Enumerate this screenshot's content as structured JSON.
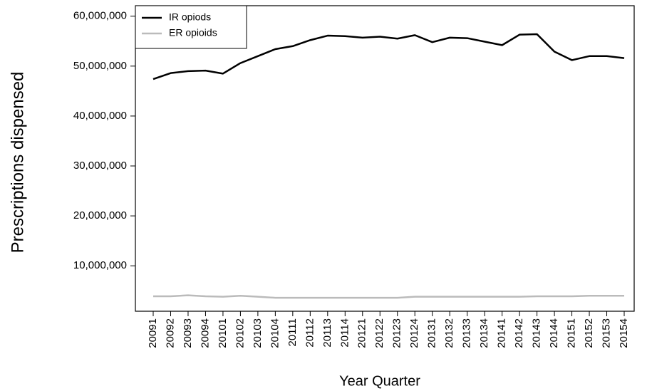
{
  "chart_data": {
    "type": "line",
    "x_label": "Year Quarter",
    "y_label": "Prescriptions dispensed",
    "categories": [
      "20091",
      "20092",
      "20093",
      "20094",
      "20101",
      "20102",
      "20103",
      "20104",
      "20111",
      "20112",
      "20113",
      "20114",
      "20121",
      "20122",
      "20123",
      "20124",
      "20131",
      "20132",
      "20133",
      "20134",
      "20141",
      "20142",
      "20143",
      "20144",
      "20151",
      "20152",
      "20153",
      "20154"
    ],
    "series": [
      {
        "name": "IR opiods",
        "color": "#000000",
        "values": [
          47400000,
          48600000,
          49000000,
          49100000,
          48500000,
          50600000,
          52000000,
          53400000,
          54000000,
          55200000,
          56100000,
          56000000,
          55700000,
          55900000,
          55500000,
          56200000,
          54800000,
          55700000,
          55600000,
          54900000,
          54200000,
          56300000,
          56400000,
          52900000,
          51200000,
          52000000,
          52000000,
          51600000
        ]
      },
      {
        "name": "ER opioids",
        "color": "#bbbbbb",
        "values": [
          3900000,
          3900000,
          4100000,
          3900000,
          3800000,
          4000000,
          3800000,
          3600000,
          3600000,
          3600000,
          3600000,
          3600000,
          3600000,
          3600000,
          3600000,
          3800000,
          3800000,
          3800000,
          3800000,
          3800000,
          3800000,
          3800000,
          3900000,
          3900000,
          3900000,
          4000000,
          4000000,
          4000000
        ]
      }
    ],
    "ylim": [
      900000,
      62100000
    ],
    "yticks": [
      {
        "value": 10000000,
        "label": "10,000,000"
      },
      {
        "value": 20000000,
        "label": "20,000,000"
      },
      {
        "value": 30000000,
        "label": "30,000,000"
      },
      {
        "value": 40000000,
        "label": "40,000,000"
      },
      {
        "value": 50000000,
        "label": "50,000,000"
      },
      {
        "value": 60000000,
        "label": "60,000,000"
      }
    ],
    "legend": "top-left"
  }
}
